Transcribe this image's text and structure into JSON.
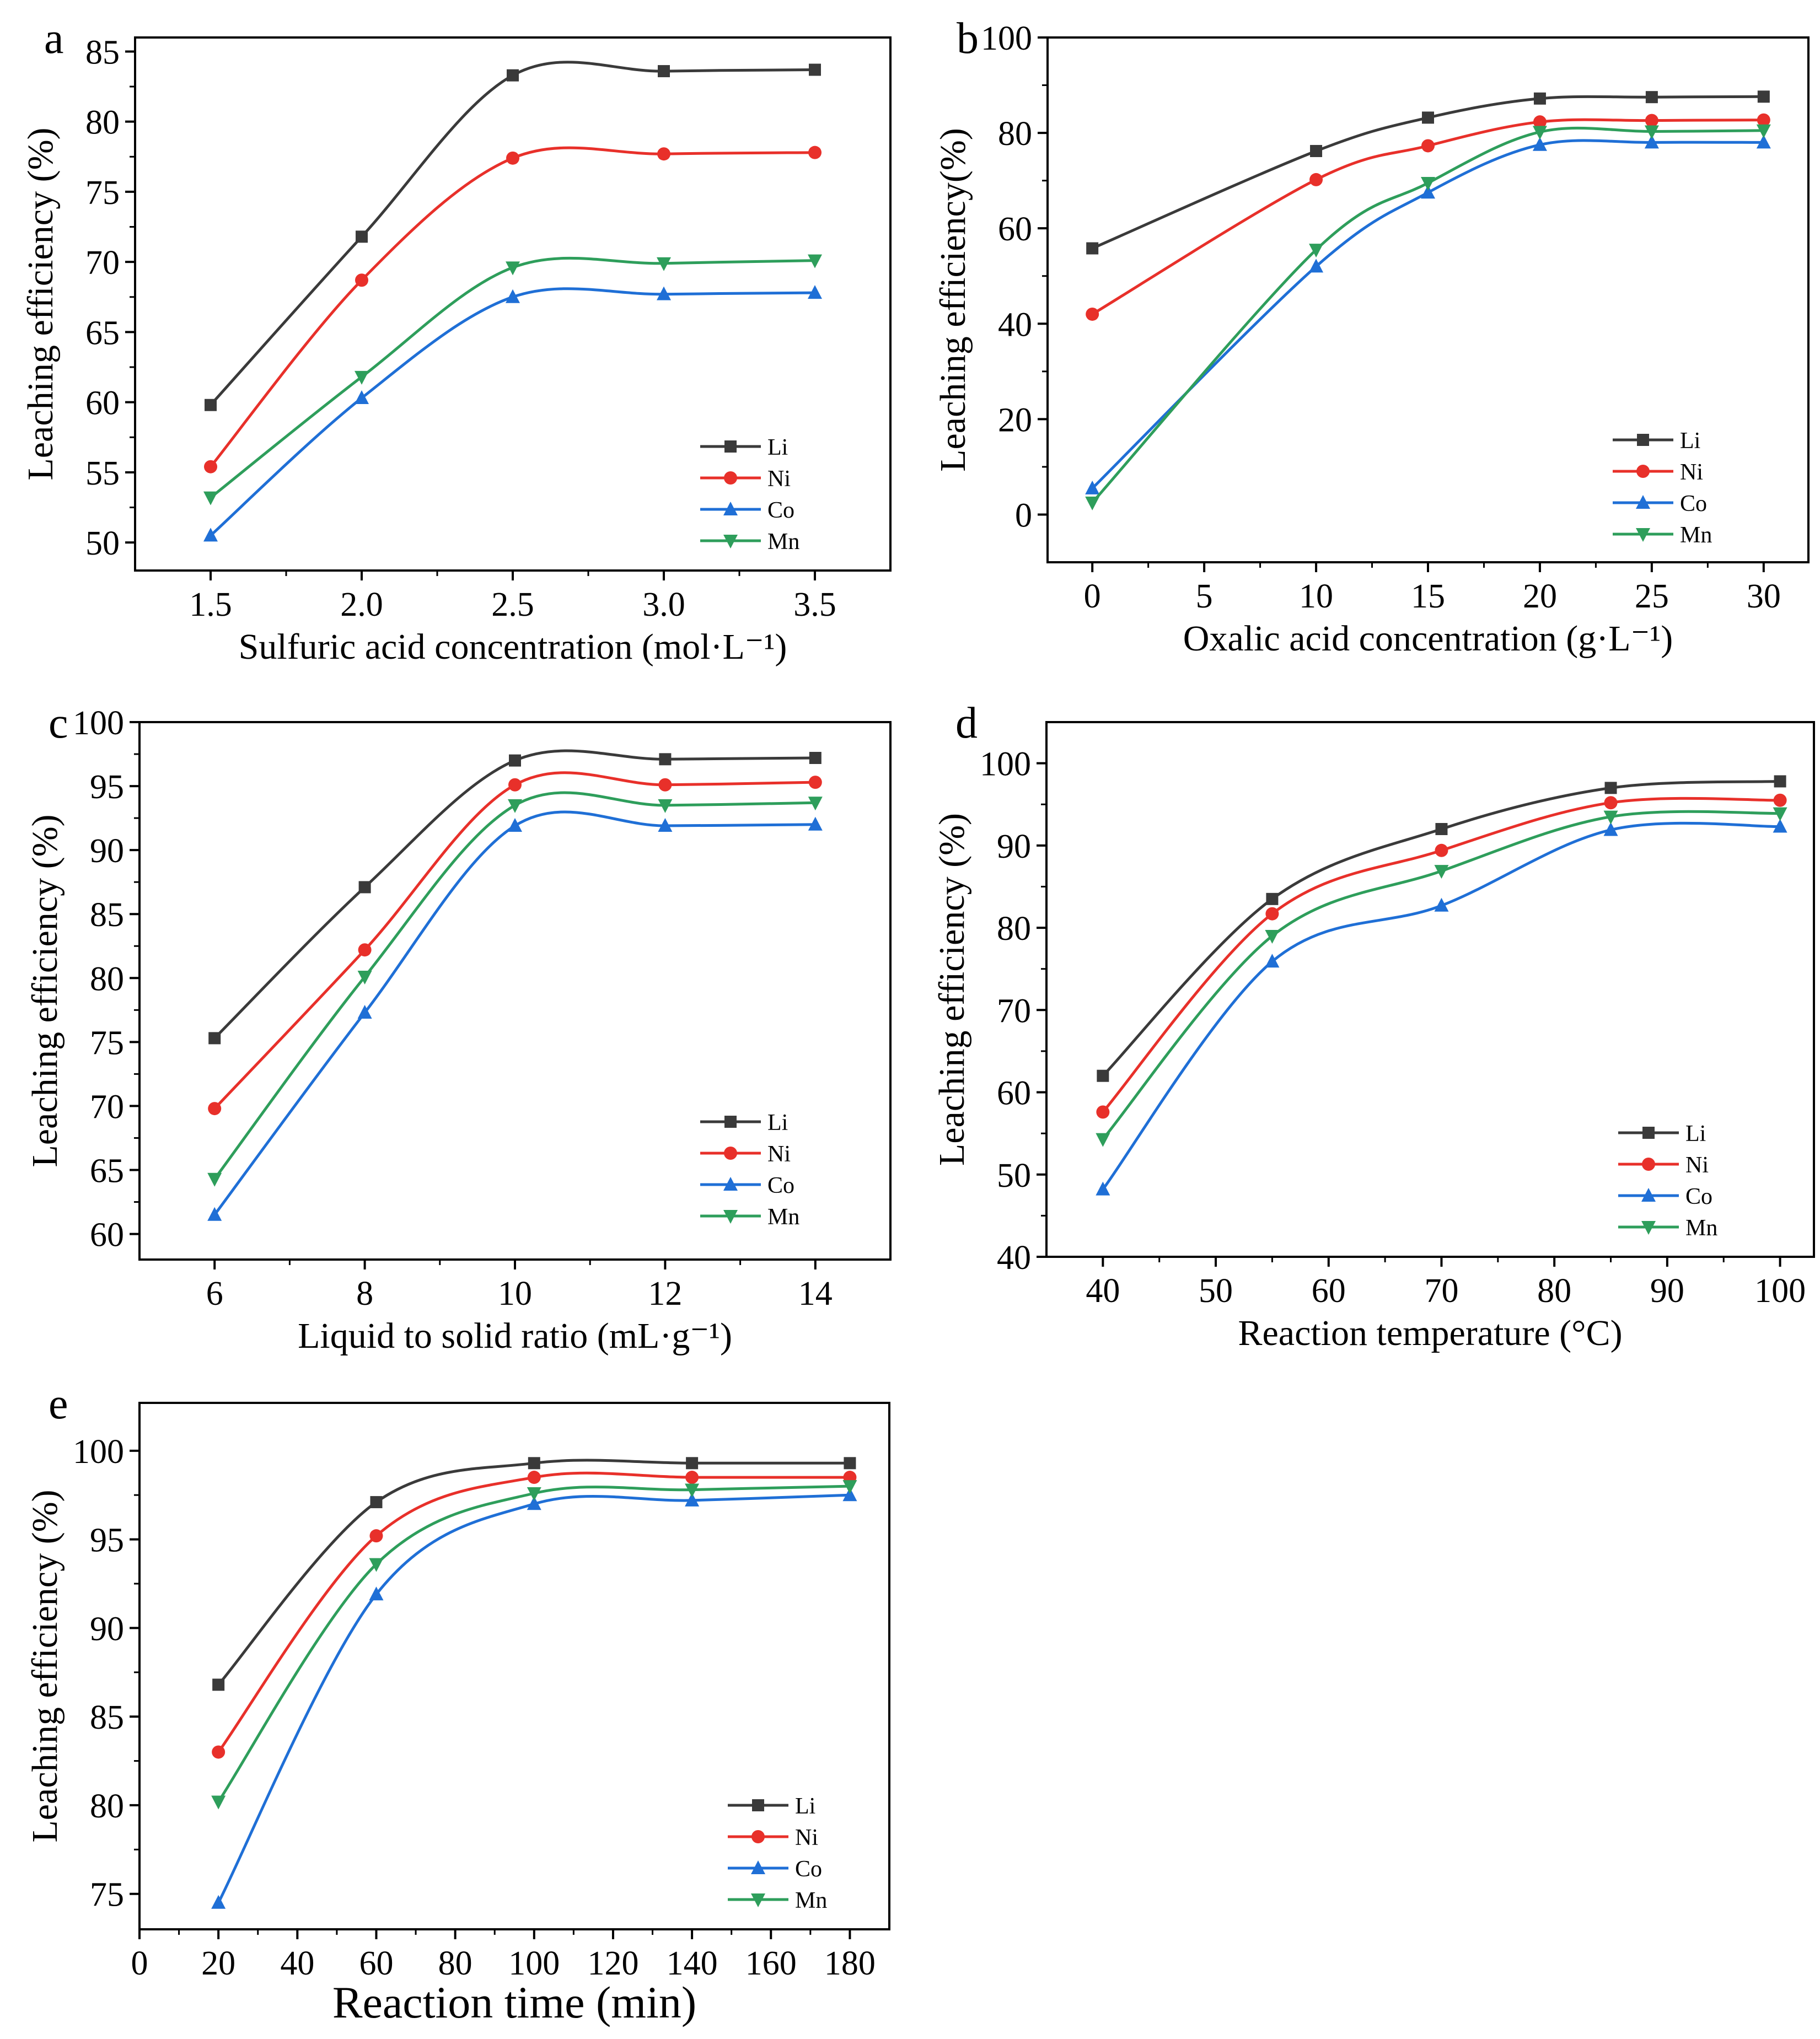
{
  "figure": {
    "series_colors": {
      "Li": "#3a3a3a",
      "Ni": "#e8302a",
      "Co": "#1f6fd6",
      "Mn": "#2e9e5b"
    },
    "series_markers": {
      "Li": "square",
      "Ni": "circle",
      "Co": "triangle-up",
      "Mn": "triangle-down"
    }
  },
  "chart_data": [
    {
      "panel": "a",
      "type": "line",
      "xlabel": "Sulfuric acid concentration (mol·L⁻¹)",
      "ylabel": "Leaching efficiency (%)",
      "xlim": [
        1.25,
        3.75
      ],
      "ylim": [
        48,
        86
      ],
      "xticks": [
        1.5,
        2.0,
        2.5,
        3.0,
        3.5
      ],
      "xtick_labels": [
        "1.5",
        "2.0",
        "2.5",
        "3.0",
        "3.5"
      ],
      "yticks": [
        50,
        55,
        60,
        65,
        70,
        75,
        80,
        85
      ],
      "ytick_labels": [
        "50",
        "55",
        "60",
        "65",
        "70",
        "75",
        "80",
        "85"
      ],
      "legend_position": "bottom-right",
      "grid": false,
      "x": [
        1.5,
        2.0,
        2.5,
        3.0,
        3.5
      ],
      "series": [
        {
          "name": "Li",
          "values": [
            59.8,
            71.8,
            83.3,
            83.6,
            83.7
          ]
        },
        {
          "name": "Ni",
          "values": [
            55.4,
            68.7,
            77.4,
            77.7,
            77.8
          ]
        },
        {
          "name": "Co",
          "values": [
            50.5,
            60.3,
            67.5,
            67.7,
            67.8
          ]
        },
        {
          "name": "Mn",
          "values": [
            53.2,
            61.8,
            69.6,
            69.9,
            70.1
          ]
        }
      ]
    },
    {
      "panel": "b",
      "type": "line",
      "xlabel": "Oxalic acid concentration (g·L⁻¹)",
      "ylabel": "Leaching efficiency(%)",
      "xlim": [
        -2,
        32
      ],
      "ylim": [
        -10,
        100
      ],
      "xticks": [
        0,
        5,
        10,
        15,
        20,
        25,
        30
      ],
      "xtick_labels": [
        "0",
        "5",
        "10",
        "15",
        "20",
        "25",
        "30"
      ],
      "yticks": [
        0,
        20,
        40,
        60,
        80,
        100
      ],
      "ytick_labels": [
        "0",
        "20",
        "40",
        "60",
        "80",
        "100"
      ],
      "legend_position": "bottom-right",
      "grid": false,
      "x": [
        0,
        10,
        15,
        20,
        25,
        30
      ],
      "series": [
        {
          "name": "Li",
          "values": [
            55.8,
            76.2,
            83.2,
            87.2,
            87.5,
            87.6
          ]
        },
        {
          "name": "Ni",
          "values": [
            42.0,
            70.2,
            77.3,
            82.3,
            82.6,
            82.7
          ]
        },
        {
          "name": "Co",
          "values": [
            5.5,
            52.0,
            67.5,
            77.5,
            78.0,
            78.0
          ]
        },
        {
          "name": "Mn",
          "values": [
            2.5,
            55.5,
            69.5,
            80.2,
            80.3,
            80.5
          ]
        }
      ]
    },
    {
      "panel": "c",
      "type": "line",
      "xlabel": "Liquid to solid ratio (mL·g⁻¹)",
      "ylabel": "Leaching efficiency (%)",
      "xlim": [
        5,
        15
      ],
      "ylim": [
        58,
        100
      ],
      "xticks": [
        6,
        8,
        10,
        12,
        14
      ],
      "xtick_labels": [
        "6",
        "8",
        "10",
        "12",
        "14"
      ],
      "yticks": [
        60,
        65,
        70,
        75,
        80,
        85,
        90,
        95,
        100
      ],
      "ytick_labels": [
        "60",
        "65",
        "70",
        "75",
        "80",
        "85",
        "90",
        "95",
        "100"
      ],
      "legend_position": "bottom-right",
      "grid": false,
      "x": [
        6,
        8,
        10,
        12,
        14
      ],
      "series": [
        {
          "name": "Li",
          "values": [
            75.3,
            87.1,
            97.0,
            97.1,
            97.2
          ]
        },
        {
          "name": "Ni",
          "values": [
            69.8,
            82.2,
            95.1,
            95.1,
            95.3
          ]
        },
        {
          "name": "Co",
          "values": [
            61.5,
            77.3,
            91.9,
            91.9,
            92.0
          ]
        },
        {
          "name": "Mn",
          "values": [
            64.3,
            80.1,
            93.5,
            93.5,
            93.7
          ]
        }
      ]
    },
    {
      "panel": "d",
      "type": "line",
      "xlabel": "Reaction temperature (°C)",
      "ylabel": "Leaching efficiency (%)",
      "xlim": [
        35,
        103
      ],
      "ylim": [
        40,
        105
      ],
      "xticks": [
        40,
        50,
        60,
        70,
        80,
        90,
        100
      ],
      "xtick_labels": [
        "40",
        "50",
        "60",
        "70",
        "80",
        "90",
        "100"
      ],
      "yticks": [
        40,
        50,
        60,
        70,
        80,
        90,
        100
      ],
      "ytick_labels": [
        "40",
        "50",
        "60",
        "70",
        "80",
        "90",
        "100"
      ],
      "legend_position": "bottom-right",
      "grid": false,
      "x": [
        40,
        55,
        70,
        85,
        100
      ],
      "series": [
        {
          "name": "Li",
          "values": [
            62.0,
            83.5,
            92.0,
            97.0,
            97.8
          ]
        },
        {
          "name": "Ni",
          "values": [
            57.6,
            81.7,
            89.4,
            95.2,
            95.5
          ]
        },
        {
          "name": "Co",
          "values": [
            48.2,
            75.9,
            82.7,
            91.9,
            92.3
          ]
        },
        {
          "name": "Mn",
          "values": [
            54.3,
            79.0,
            86.9,
            93.5,
            93.9
          ]
        }
      ]
    },
    {
      "panel": "e",
      "type": "line",
      "xlabel": "Reaction time (min)",
      "ylabel": "Leaching efficiency (%)",
      "xlim": [
        0,
        190
      ],
      "ylim": [
        73,
        102.7
      ],
      "xticks": [
        0,
        20,
        40,
        60,
        80,
        100,
        120,
        140,
        160,
        180
      ],
      "xtick_labels": [
        "0",
        "20",
        "40",
        "60",
        "80",
        "100",
        "120",
        "140",
        "160",
        "180"
      ],
      "yticks": [
        75,
        80,
        85,
        90,
        95,
        100
      ],
      "ytick_labels": [
        "75",
        "80",
        "85",
        "90",
        "95",
        "100"
      ],
      "legend_position": "bottom-right",
      "grid": false,
      "x": [
        20,
        60,
        100,
        140,
        180
      ],
      "series": [
        {
          "name": "Li",
          "values": [
            86.8,
            97.1,
            99.3,
            99.3,
            99.3
          ]
        },
        {
          "name": "Ni",
          "values": [
            83.0,
            95.2,
            98.5,
            98.5,
            98.5
          ]
        },
        {
          "name": "Co",
          "values": [
            74.5,
            91.9,
            97.0,
            97.2,
            97.5
          ]
        },
        {
          "name": "Mn",
          "values": [
            80.2,
            93.6,
            97.6,
            97.8,
            98.0
          ]
        }
      ]
    }
  ]
}
